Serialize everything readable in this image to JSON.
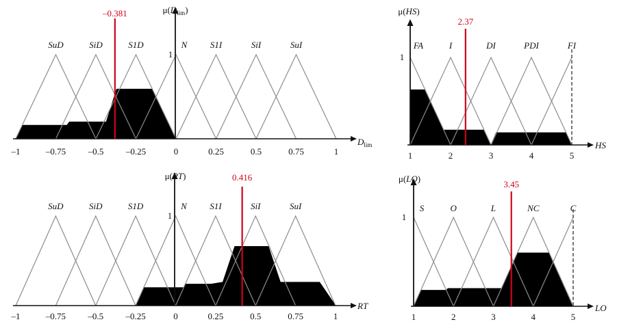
{
  "colors": {
    "membership_line": "#8c8c8c",
    "fill": "#000000",
    "threshold_line": "#d0021b",
    "axis": "#111111"
  },
  "chart_data": [
    {
      "id": "dlim",
      "type": "area",
      "title": "",
      "ylabel_prefix": "μ(",
      "ylabel_var": "D",
      "ylabel_sub": "lim",
      "ylabel_suffix": ")",
      "xlabel": "D",
      "xlabel_sub": "lim",
      "xlim": [
        -1,
        1
      ],
      "ylim": [
        0,
        1
      ],
      "y_tick_label": "1",
      "x_ticks": [
        {
          "value": -1,
          "label": "–1"
        },
        {
          "value": -0.75,
          "label": "–0.75"
        },
        {
          "value": -0.5,
          "label": "–0.5"
        },
        {
          "value": -0.25,
          "label": "–0.25"
        },
        {
          "value": 0,
          "label": "0"
        },
        {
          "value": 0.25,
          "label": "0.25"
        },
        {
          "value": 0.5,
          "label": "0.5"
        },
        {
          "value": 0.75,
          "label": "0.75"
        },
        {
          "value": 1,
          "label": "1"
        }
      ],
      "sets": [
        {
          "name": "SuD",
          "a": -1,
          "b": -0.75,
          "c": -0.5
        },
        {
          "name": "SiD",
          "a": -0.75,
          "b": -0.5,
          "c": -0.25
        },
        {
          "name": "S1D",
          "a": -0.5,
          "b": -0.25,
          "c": 0
        },
        {
          "name": "N",
          "a": -0.25,
          "b": 0,
          "c": 0.25
        },
        {
          "name": "S1I",
          "a": 0,
          "b": 0.25,
          "c": 0.5
        },
        {
          "name": "SiI",
          "a": 0.25,
          "b": 0.5,
          "c": 0.75
        },
        {
          "name": "SuI",
          "a": 0.5,
          "b": 0.75,
          "c": 1
        }
      ],
      "threshold": {
        "value": -0.381,
        "label": "–0.381"
      },
      "aggregate": [
        [
          -1,
          0
        ],
        [
          -0.96,
          0.16
        ],
        [
          -0.68,
          0.16
        ],
        [
          -0.665,
          0.2
        ],
        [
          -0.435,
          0.2
        ],
        [
          -0.37,
          0.59
        ],
        [
          -0.29,
          0.59
        ],
        [
          -0.15,
          0.59
        ],
        [
          0,
          0
        ]
      ]
    },
    {
      "id": "rt",
      "type": "area",
      "title": "",
      "ylabel_prefix": "μ(",
      "ylabel_var": "RT",
      "ylabel_sub": "",
      "ylabel_suffix": ")",
      "xlabel": "RT",
      "xlabel_sub": "",
      "xlim": [
        -1,
        1
      ],
      "ylim": [
        0,
        1
      ],
      "y_tick_label": "1",
      "x_ticks": [
        {
          "value": -1,
          "label": "–1"
        },
        {
          "value": -0.75,
          "label": "–0.75"
        },
        {
          "value": -0.5,
          "label": "–0.5"
        },
        {
          "value": -0.25,
          "label": "–0.25"
        },
        {
          "value": 0,
          "label": "0"
        },
        {
          "value": 0.25,
          "label": "0.25"
        },
        {
          "value": 0.5,
          "label": "0.5"
        },
        {
          "value": 0.75,
          "label": "0.75"
        },
        {
          "value": 1,
          "label": "1"
        }
      ],
      "sets": [
        {
          "name": "SuD",
          "a": -1,
          "b": -0.75,
          "c": -0.5
        },
        {
          "name": "SiD",
          "a": -0.75,
          "b": -0.5,
          "c": -0.25
        },
        {
          "name": "S1D",
          "a": -0.5,
          "b": -0.25,
          "c": 0
        },
        {
          "name": "N",
          "a": -0.25,
          "b": 0,
          "c": 0.25
        },
        {
          "name": "S1I",
          "a": 0,
          "b": 0.25,
          "c": 0.5
        },
        {
          "name": "SiI",
          "a": 0.25,
          "b": 0.5,
          "c": 0.75
        },
        {
          "name": "SuI",
          "a": 0.5,
          "b": 0.75,
          "c": 1
        }
      ],
      "threshold": {
        "value": 0.416,
        "label": "0.416"
      },
      "aggregate": [
        [
          -0.25,
          0
        ],
        [
          -0.2,
          0.2
        ],
        [
          -0.05,
          0.2
        ],
        [
          0.05,
          0.2
        ],
        [
          0.06,
          0.24
        ],
        [
          0.19,
          0.24
        ],
        [
          0.22,
          0.24
        ],
        [
          0.295,
          0.26
        ],
        [
          0.37,
          0.66
        ],
        [
          0.58,
          0.66
        ],
        [
          0.655,
          0.26
        ],
        [
          0.9,
          0.26
        ],
        [
          1,
          0
        ]
      ]
    },
    {
      "id": "hs",
      "type": "area",
      "title": "",
      "ylabel_prefix": "μ(",
      "ylabel_var": "HS",
      "ylabel_sub": "",
      "ylabel_suffix": ")",
      "xlabel": "HS",
      "xlabel_sub": "",
      "xlim": [
        1,
        5
      ],
      "ylim": [
        0,
        1
      ],
      "y_tick_label": "1",
      "x_ticks": [
        {
          "value": 1,
          "label": "1"
        },
        {
          "value": 2,
          "label": "2"
        },
        {
          "value": 3,
          "label": "3"
        },
        {
          "value": 4,
          "label": "4"
        },
        {
          "value": 5,
          "label": "5"
        }
      ],
      "sets": [
        {
          "name": "FA",
          "a": 0,
          "b": 1,
          "c": 2
        },
        {
          "name": "I",
          "a": 1,
          "b": 2,
          "c": 3
        },
        {
          "name": "DI",
          "a": 2,
          "b": 3,
          "c": 4
        },
        {
          "name": "PDI",
          "a": 3,
          "b": 4,
          "c": 5
        },
        {
          "name": "FI",
          "a": 4,
          "b": 5,
          "c": 6
        }
      ],
      "threshold": {
        "value": 2.37,
        "label": "2.37"
      },
      "aggregate": [
        [
          1,
          0
        ],
        [
          1,
          0.63
        ],
        [
          1.37,
          0.63
        ],
        [
          1.82,
          0.17
        ],
        [
          2.17,
          0.17
        ],
        [
          2.82,
          0.17
        ],
        [
          3.0,
          0
        ],
        [
          3.13,
          0.14
        ],
        [
          4.86,
          0.14
        ],
        [
          5,
          0
        ]
      ],
      "dashed_set": "FI"
    },
    {
      "id": "lo",
      "type": "area",
      "title": "",
      "ylabel_prefix": "μ(",
      "ylabel_var": "LO",
      "ylabel_sub": "",
      "ylabel_suffix": ")",
      "xlabel": "LO",
      "xlabel_sub": "",
      "xlim": [
        1,
        5
      ],
      "ylim": [
        0,
        1
      ],
      "y_tick_label": "1",
      "x_ticks": [
        {
          "value": 1,
          "label": "1"
        },
        {
          "value": 2,
          "label": "2"
        },
        {
          "value": 3,
          "label": "3"
        },
        {
          "value": 4,
          "label": "4"
        },
        {
          "value": 5,
          "label": "5"
        }
      ],
      "sets": [
        {
          "name": "S",
          "a": 0,
          "b": 1,
          "c": 2
        },
        {
          "name": "O",
          "a": 1,
          "b": 2,
          "c": 3
        },
        {
          "name": "L",
          "a": 2,
          "b": 3,
          "c": 4
        },
        {
          "name": "NC",
          "a": 3,
          "b": 4,
          "c": 5
        },
        {
          "name": "C",
          "a": 4,
          "b": 5,
          "c": 6
        }
      ],
      "threshold": {
        "value": 3.45,
        "label": "3.45"
      },
      "aggregate": [
        [
          1,
          0
        ],
        [
          1.18,
          0.18
        ],
        [
          1.82,
          0.18
        ],
        [
          1.86,
          0.2
        ],
        [
          2.84,
          0.2
        ],
        [
          3.21,
          0.2
        ],
        [
          3.6,
          0.6
        ],
        [
          4.4,
          0.6
        ],
        [
          5,
          0
        ]
      ],
      "dashed_set": "C"
    }
  ]
}
